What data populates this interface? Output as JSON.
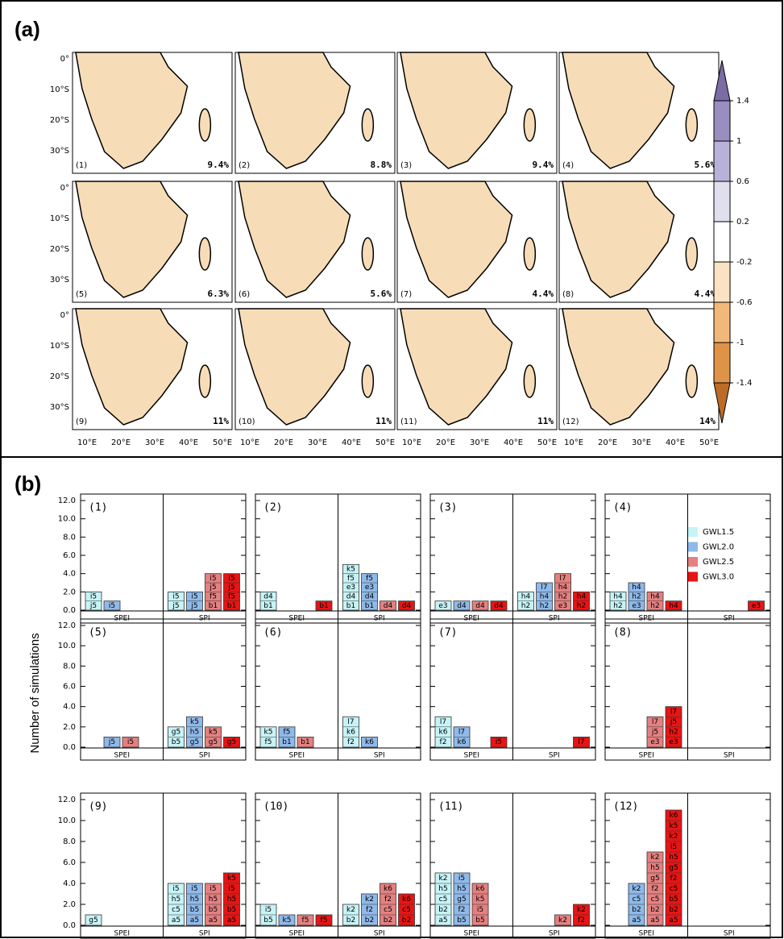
{
  "chart_data": [
    {
      "type": "map",
      "title": "(a)",
      "lat_ticks": [
        "0°",
        "10°S",
        "20°S",
        "30°S"
      ],
      "lon_ticks": [
        "10°E",
        "20°E",
        "30°E",
        "40°E",
        "50°E"
      ],
      "panels": [
        {
          "label": "(1)",
          "percent": "9.4%"
        },
        {
          "label": "(2)",
          "percent": "8.8%"
        },
        {
          "label": "(3)",
          "percent": "9.4%"
        },
        {
          "label": "(4)",
          "percent": "5.6%"
        },
        {
          "label": "(5)",
          "percent": "6.3%"
        },
        {
          "label": "(6)",
          "percent": "5.6%"
        },
        {
          "label": "(7)",
          "percent": "4.4%"
        },
        {
          "label": "(8)",
          "percent": "4.4%"
        },
        {
          "label": "(9)",
          "percent": "11%"
        },
        {
          "label": "(10)",
          "percent": "11%"
        },
        {
          "label": "(11)",
          "percent": "11%"
        },
        {
          "label": "(12)",
          "percent": "14%"
        }
      ],
      "colorbar_ticks": [
        1.4,
        1,
        0.6,
        0.2,
        -0.2,
        -0.6,
        -1,
        -1.4
      ],
      "colorbar_colors": [
        "#7b6ca6",
        "#9a8dc0",
        "#b9b2d8",
        "#dfdfee",
        "#ffffff",
        "#fbe2c2",
        "#f2b879",
        "#de9347",
        "#bd6c28"
      ]
    },
    {
      "type": "bar",
      "title": "(b)",
      "ylabel": "Number of simulations",
      "ylim": [
        0,
        12
      ],
      "yticks": [
        {
          "value": 0,
          "label": "0.0"
        },
        {
          "value": 2,
          "label": "2.0"
        },
        {
          "value": 4,
          "label": "4.0"
        },
        {
          "value": 6,
          "label": "6.0"
        },
        {
          "value": 8,
          "label": "8.0"
        },
        {
          "value": 10,
          "label": "10.0"
        },
        {
          "value": 12,
          "label": "12.0"
        }
      ],
      "categories": [
        "SPEI",
        "SPI"
      ],
      "series": [
        {
          "name": "GWL1.5",
          "color": "#c6f3f6"
        },
        {
          "name": "GWL2.0",
          "color": "#8fb9ea"
        },
        {
          "name": "GWL2.5",
          "color": "#e58080"
        },
        {
          "name": "GWL3.0",
          "color": "#e81414"
        }
      ],
      "panels": [
        {
          "label": "(1)",
          "values": [
            [
              2,
              2
            ],
            [
              1,
              2
            ],
            [
              0,
              4
            ],
            [
              0,
              4
            ]
          ],
          "value_labels": [
            [
              [
                "i5",
                "j5"
              ],
              [
                "i5",
                "j5"
              ]
            ],
            [
              [
                "i5"
              ],
              [
                "i5",
                "j5"
              ]
            ],
            [
              [],
              [
                "i5",
                "j5",
                "f5",
                "b1"
              ]
            ],
            [
              [],
              [
                "i5",
                "j5",
                "f5",
                "b1"
              ]
            ]
          ]
        },
        {
          "label": "(2)",
          "values": [
            [
              2,
              5
            ],
            [
              0,
              4
            ],
            [
              0,
              1
            ],
            [
              1,
              1
            ]
          ],
          "value_labels": [
            [
              [
                "d4",
                "b1"
              ],
              [
                "k5",
                "f5",
                "e3",
                "d4",
                "b1"
              ]
            ],
            [
              [],
              [
                "f5",
                "e3",
                "d4",
                "b1"
              ]
            ],
            [
              [],
              [
                "d4"
              ]
            ],
            [
              [
                "b1"
              ],
              [
                "d4"
              ]
            ]
          ]
        },
        {
          "label": "(3)",
          "values": [
            [
              1,
              2
            ],
            [
              1,
              3
            ],
            [
              1,
              4
            ],
            [
              1,
              2
            ]
          ],
          "value_labels": [
            [
              [
                "e3"
              ],
              [
                "h4",
                "h2"
              ]
            ],
            [
              [
                "d4"
              ],
              [
                "l7",
                "h4",
                "h2"
              ]
            ],
            [
              [
                "d4"
              ],
              [
                "l7",
                "h4",
                "h2",
                "e3"
              ]
            ],
            [
              [
                "d4"
              ],
              [
                "h4",
                "h2"
              ]
            ]
          ]
        },
        {
          "label": "(4)",
          "values": [
            [
              2,
              0
            ],
            [
              3,
              0
            ],
            [
              2,
              0
            ],
            [
              1,
              1
            ]
          ],
          "value_labels": [
            [
              [
                "h4",
                "h2"
              ],
              []
            ],
            [
              [
                "h4",
                "h2",
                "e3"
              ],
              []
            ],
            [
              [
                "h4",
                "h2"
              ],
              []
            ],
            [
              [
                "h4"
              ],
              [
                "e3"
              ]
            ]
          ]
        },
        {
          "label": "(5)",
          "values": [
            [
              0,
              2
            ],
            [
              1,
              3
            ],
            [
              1,
              2
            ],
            [
              0,
              1
            ]
          ],
          "value_labels": [
            [
              [],
              [
                "g5",
                "b5"
              ]
            ],
            [
              [
                "j5"
              ],
              [
                "k5",
                "h5",
                "g5"
              ]
            ],
            [
              [
                "i5"
              ],
              [
                "k5",
                "g5"
              ]
            ],
            [
              [],
              [
                "g5"
              ]
            ]
          ]
        },
        {
          "label": "(6)",
          "values": [
            [
              2,
              3
            ],
            [
              2,
              1
            ],
            [
              1,
              0
            ],
            [
              0,
              0
            ]
          ],
          "value_labels": [
            [
              [
                "k5",
                "f5"
              ],
              [
                "l7",
                "k6",
                "f2"
              ]
            ],
            [
              [
                "f5",
                "b1"
              ],
              [
                "k6"
              ]
            ],
            [
              [
                "b1"
              ],
              []
            ],
            [
              [],
              []
            ]
          ]
        },
        {
          "label": "(7)",
          "values": [
            [
              3,
              0
            ],
            [
              2,
              0
            ],
            [
              0,
              0
            ],
            [
              1,
              1
            ]
          ],
          "value_labels": [
            [
              [
                "l7",
                "k6",
                "f2"
              ],
              []
            ],
            [
              [
                "l7",
                "k6"
              ],
              []
            ],
            [
              [],
              []
            ],
            [
              [
                "i5"
              ],
              [
                "l7"
              ]
            ]
          ]
        },
        {
          "label": "(8)",
          "values": [
            [
              0,
              0
            ],
            [
              0,
              0
            ],
            [
              3,
              0
            ],
            [
              4,
              0
            ]
          ],
          "value_labels": [
            [
              [],
              []
            ],
            [
              [],
              []
            ],
            [
              [
                "l7",
                "j5",
                "e3"
              ],
              []
            ],
            [
              [
                "l7",
                "j5",
                "h2",
                "e3"
              ],
              []
            ]
          ]
        },
        {
          "label": "(9)",
          "values": [
            [
              1,
              4
            ],
            [
              0,
              4
            ],
            [
              0,
              4
            ],
            [
              0,
              5
            ]
          ],
          "value_labels": [
            [
              [
                "g5"
              ],
              [
                "i5",
                "h5",
                "c5",
                "a5"
              ]
            ],
            [
              [],
              [
                "i5",
                "h5",
                "b5",
                "a5"
              ]
            ],
            [
              [],
              [
                "i5",
                "h5",
                "b5",
                "a5"
              ]
            ],
            [
              [],
              [
                "k5",
                "i5",
                "h5",
                "b5",
                "a5"
              ]
            ]
          ]
        },
        {
          "label": "(10)",
          "values": [
            [
              2,
              2
            ],
            [
              1,
              3
            ],
            [
              1,
              4
            ],
            [
              1,
              3
            ]
          ],
          "value_labels": [
            [
              [
                "i5",
                "b5"
              ],
              [
                "k2",
                "b2"
              ]
            ],
            [
              [
                "k5"
              ],
              [
                "k2",
                "f2",
                "b2"
              ]
            ],
            [
              [
                "f5"
              ],
              [
                "k6",
                "f2",
                "c5",
                "b2"
              ]
            ],
            [
              [
                "f5"
              ],
              [
                "k6",
                "c5",
                "b2"
              ]
            ]
          ]
        },
        {
          "label": "(11)",
          "values": [
            [
              5,
              0
            ],
            [
              5,
              0
            ],
            [
              4,
              1
            ],
            [
              0,
              2
            ]
          ],
          "value_labels": [
            [
              [
                "k2",
                "h5",
                "c5",
                "b2",
                "a5"
              ],
              []
            ],
            [
              [
                "i5",
                "h5",
                "g5",
                "f2",
                "b5"
              ],
              []
            ],
            [
              [
                "k6",
                "k5",
                "i5",
                "b5"
              ],
              [
                "k2"
              ]
            ],
            [
              [],
              [
                "k2",
                "f2"
              ]
            ]
          ]
        },
        {
          "label": "(12)",
          "values": [
            [
              0,
              0
            ],
            [
              4,
              0
            ],
            [
              7,
              0
            ],
            [
              11,
              0
            ]
          ],
          "value_labels": [
            [
              [],
              []
            ],
            [
              [
                "k2",
                "c5",
                "b2",
                "a5"
              ],
              []
            ],
            [
              [
                "k2",
                "h5",
                "g5",
                "f2",
                "c5",
                "b2",
                "a5"
              ],
              []
            ],
            [
              [
                "k6",
                "k5",
                "k2",
                "i5",
                "h5",
                "g5",
                "f2",
                "c5",
                "b5",
                "b2",
                "a5"
              ],
              []
            ]
          ]
        }
      ]
    }
  ]
}
